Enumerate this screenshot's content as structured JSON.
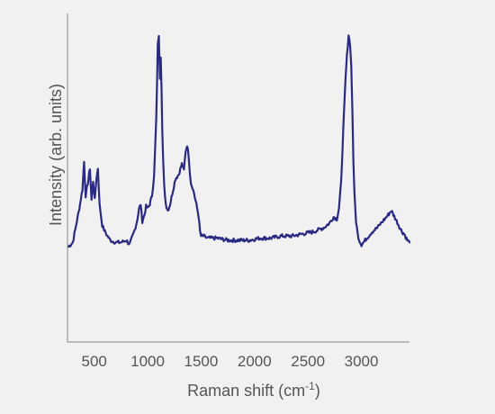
{
  "chart_data": {
    "type": "line",
    "title": "",
    "xlabel": "Raman shift (cm",
    "xlabel_sup": "-1",
    "xlabel_suffix": ")",
    "ylabel": "Intensity (arb. units)",
    "xlim": [
      250,
      3450
    ],
    "ylim": [
      -0.45,
      1.1
    ],
    "x_ticks": [
      500,
      1000,
      1500,
      2000,
      2500,
      3000
    ],
    "y_ticks": [],
    "grid": false,
    "line_color": "#2a2a82",
    "series": [
      {
        "x": [
          260,
          300,
          330,
          360,
          390,
          405,
          420,
          440,
          460,
          475,
          490,
          505,
          520,
          535,
          550,
          575,
          600,
          650,
          700,
          750,
          800,
          830,
          860,
          880,
          900,
          920,
          935,
          950,
          970,
          985,
          1000,
          1020,
          1040,
          1060,
          1080,
          1095,
          1105,
          1115,
          1122,
          1130,
          1137,
          1145,
          1155,
          1170,
          1190,
          1210,
          1230,
          1260,
          1290,
          1320,
          1340,
          1355,
          1370,
          1385,
          1395,
          1405,
          1420,
          1435,
          1455,
          1475,
          1490,
          1500,
          1520,
          1560,
          1650,
          1750,
          1850,
          1950,
          2050,
          2150,
          2250,
          2350,
          2450,
          2550,
          2650,
          2700,
          2740,
          2770,
          2790,
          2810,
          2830,
          2850,
          2865,
          2880,
          2895,
          2905,
          2915,
          2925,
          2935,
          2950,
          2965,
          2980,
          3000,
          3020,
          3050,
          3100,
          3150,
          3200,
          3250,
          3280,
          3300,
          3330,
          3350,
          3380,
          3400,
          3430,
          3450
        ],
        "values": [
          0.0,
          0.02,
          0.1,
          0.18,
          0.27,
          0.4,
          0.24,
          0.3,
          0.37,
          0.22,
          0.31,
          0.22,
          0.32,
          0.37,
          0.2,
          0.1,
          0.07,
          0.03,
          0.02,
          0.02,
          0.03,
          0.01,
          0.05,
          0.08,
          0.12,
          0.18,
          0.2,
          0.12,
          0.15,
          0.19,
          0.18,
          0.2,
          0.24,
          0.33,
          0.6,
          0.95,
          1.0,
          0.8,
          0.9,
          0.75,
          0.55,
          0.4,
          0.28,
          0.2,
          0.17,
          0.2,
          0.25,
          0.32,
          0.34,
          0.39,
          0.36,
          0.45,
          0.48,
          0.42,
          0.35,
          0.3,
          0.28,
          0.25,
          0.2,
          0.15,
          0.07,
          0.05,
          0.05,
          0.04,
          0.04,
          0.03,
          0.03,
          0.03,
          0.04,
          0.04,
          0.05,
          0.05,
          0.06,
          0.07,
          0.09,
          0.11,
          0.14,
          0.13,
          0.18,
          0.3,
          0.55,
          0.78,
          0.9,
          1.0,
          0.95,
          0.85,
          0.65,
          0.4,
          0.25,
          0.12,
          0.06,
          0.03,
          0.01,
          0.02,
          0.04,
          0.07,
          0.09,
          0.12,
          0.15,
          0.17,
          0.15,
          0.12,
          0.1,
          0.07,
          0.06,
          0.03,
          0.02
        ]
      }
    ]
  }
}
